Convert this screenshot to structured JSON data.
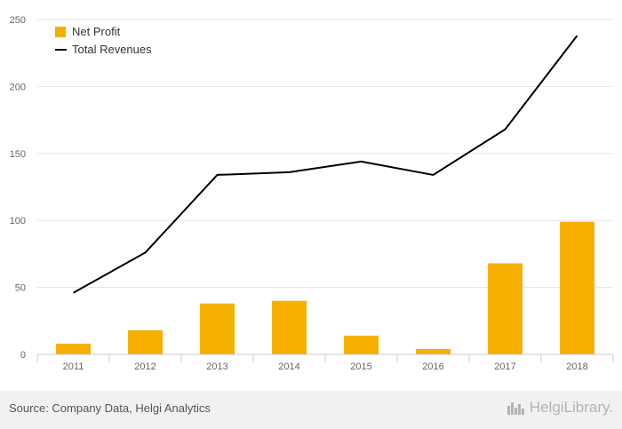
{
  "chart_data": {
    "type": "bar+line",
    "categories": [
      "2011",
      "2012",
      "2013",
      "2014",
      "2015",
      "2016",
      "2017",
      "2018"
    ],
    "series": [
      {
        "name": "Net Profit",
        "type": "bar",
        "color": "#f5b000",
        "values": [
          8,
          18,
          38,
          40,
          14,
          4,
          68,
          99
        ]
      },
      {
        "name": "Total Revenues",
        "type": "line",
        "color": "#000000",
        "values": [
          46,
          76,
          134,
          136,
          144,
          134,
          168,
          238
        ]
      }
    ],
    "ylim": [
      0,
      250
    ],
    "yticks": [
      "0",
      "50",
      "100",
      "150",
      "200",
      "250"
    ],
    "grid": true,
    "legend": "top-left"
  },
  "footer": {
    "source": "Source: Company Data, Helgi Analytics",
    "logo_text": "HelgiLibrary."
  }
}
